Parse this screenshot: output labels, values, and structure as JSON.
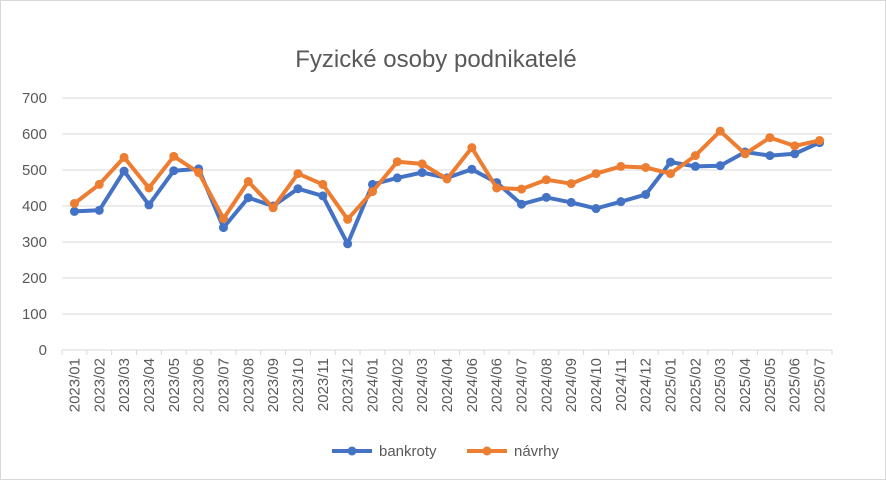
{
  "chart_data": {
    "type": "line",
    "title": "Fyzické osoby podnikatelé",
    "xlabel": "",
    "ylabel": "",
    "ylim": [
      0,
      700
    ],
    "y_ticks": [
      "0",
      "100",
      "200",
      "300",
      "400",
      "500",
      "600",
      "700"
    ],
    "grid": true,
    "legend_position": "bottom",
    "categories": [
      "2023/01",
      "2023/02",
      "2023/03",
      "2023/04",
      "2023/05",
      "2023/06",
      "2023/07",
      "2023/08",
      "2023/09",
      "2023/10",
      "2023/11",
      "2023/12",
      "2024/01",
      "2024/02",
      "2024/03",
      "2024/04",
      "2024/06",
      "2024/06",
      "2024/07",
      "2024/08",
      "2024/09",
      "2024/10",
      "2024/11",
      "2024/12",
      "2025/01",
      "2025/02",
      "2025/03",
      "2025/04",
      "2025/05",
      "2025/06",
      "2025/07"
    ],
    "series": [
      {
        "name": "bankroty",
        "color": "#4472c4",
        "values": [
          385,
          388,
          497,
          403,
          498,
          503,
          340,
          423,
          400,
          448,
          428,
          295,
          460,
          478,
          493,
          478,
          502,
          465,
          405,
          424,
          410,
          393,
          412,
          432,
          522,
          510,
          512,
          550,
          540,
          545,
          576
        ]
      },
      {
        "name": "návrhy",
        "color": "#ed7d31",
        "values": [
          407,
          460,
          535,
          450,
          538,
          493,
          365,
          468,
          395,
          490,
          460,
          363,
          440,
          523,
          517,
          475,
          562,
          450,
          447,
          473,
          462,
          490,
          510,
          507,
          490,
          540,
          608,
          545,
          590,
          567,
          582
        ]
      }
    ]
  }
}
